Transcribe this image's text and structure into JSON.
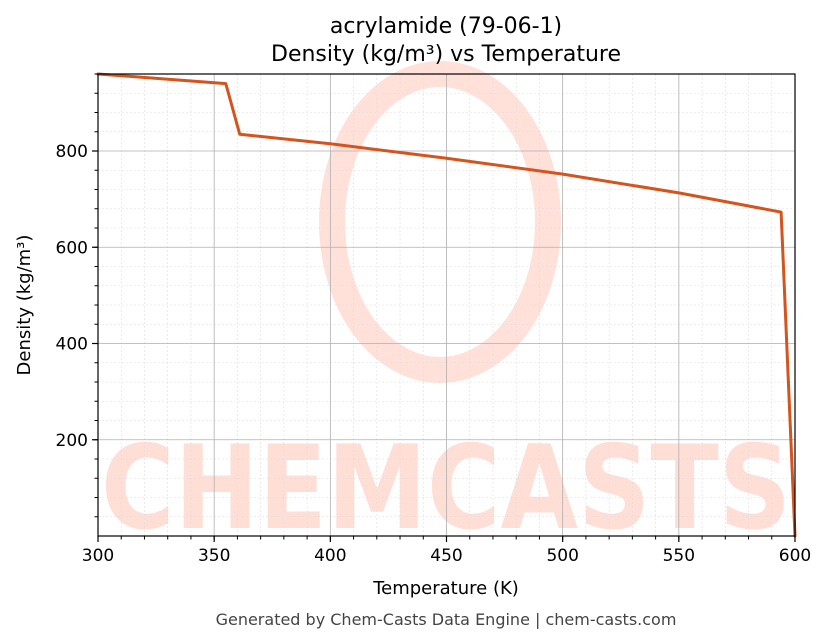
{
  "chart_data": {
    "type": "line",
    "title": "acrylamide (79-06-1)",
    "subtitle": "Density (kg/m³) vs Temperature",
    "xlabel": "Temperature (K)",
    "ylabel": "Density (kg/m³)",
    "xlim": [
      300,
      600
    ],
    "ylim": [
      0,
      960
    ],
    "xticks": [
      300,
      350,
      400,
      450,
      500,
      550,
      600
    ],
    "yticks": [
      200,
      400,
      600,
      800
    ],
    "grid": true,
    "series": [
      {
        "color": "#d4541e",
        "x": [
          300,
          355,
          361,
          400,
          450,
          500,
          550,
          594,
          600
        ],
        "y": [
          960,
          940,
          835,
          815,
          785,
          752,
          713,
          673,
          0
        ]
      }
    ]
  },
  "watermark": {
    "text": "CHEMCASTS",
    "color": "#ffd9d0"
  },
  "footer": {
    "text": "Generated by Chem-Casts Data Engine | chem-casts.com"
  }
}
